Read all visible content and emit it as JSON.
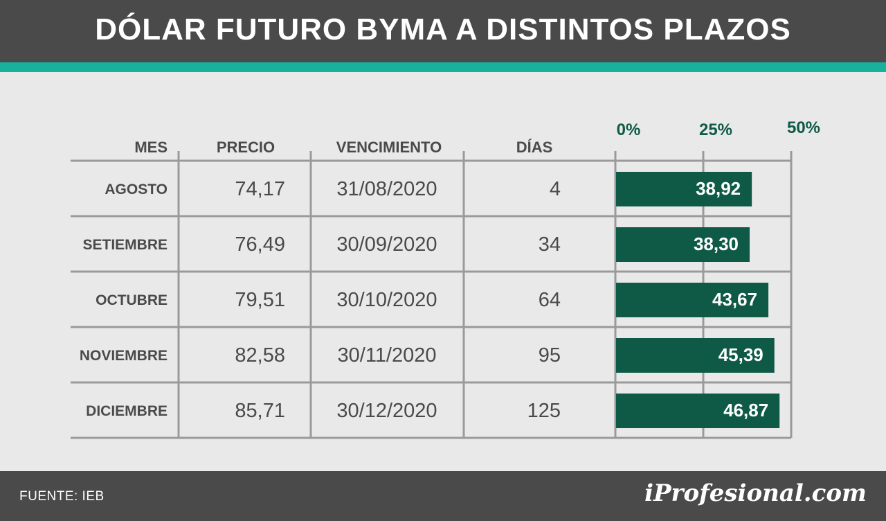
{
  "title": "DÓLAR FUTURO BYMA A DISTINTOS PLAZOS",
  "footer": {
    "source": "FUENTE:  IEB",
    "logo": "iProfesional.com"
  },
  "colors": {
    "header": "#4a4a4a",
    "accent": "#17b19c",
    "bar": "#0f5a46",
    "background": "#e9e9e9",
    "grid": "#9a9a9a"
  },
  "chart_data": {
    "type": "table",
    "columns": [
      "MES",
      "PRECIO",
      "VENCIMIENTO",
      "DÍAS"
    ],
    "xticks": [
      "0%",
      "25%",
      "50%"
    ],
    "xlim": [
      0,
      50
    ],
    "rows": [
      {
        "mes": "AGOSTO",
        "precio": "74,17",
        "vencimiento": "31/08/2020",
        "dias": "4",
        "tasa": 38.92,
        "tasa_label": "38,92"
      },
      {
        "mes": "SETIEMBRE",
        "precio": "76,49",
        "vencimiento": "30/09/2020",
        "dias": "34",
        "tasa": 38.3,
        "tasa_label": "38,30"
      },
      {
        "mes": "OCTUBRE",
        "precio": "79,51",
        "vencimiento": "30/10/2020",
        "dias": "64",
        "tasa": 43.67,
        "tasa_label": "43,67"
      },
      {
        "mes": "NOVIEMBRE",
        "precio": "82,58",
        "vencimiento": "30/11/2020",
        "dias": "95",
        "tasa": 45.39,
        "tasa_label": "45,39"
      },
      {
        "mes": "DICIEMBRE",
        "precio": "85,71",
        "vencimiento": "30/12/2020",
        "dias": "125",
        "tasa": 46.87,
        "tasa_label": "46,87"
      }
    ]
  }
}
